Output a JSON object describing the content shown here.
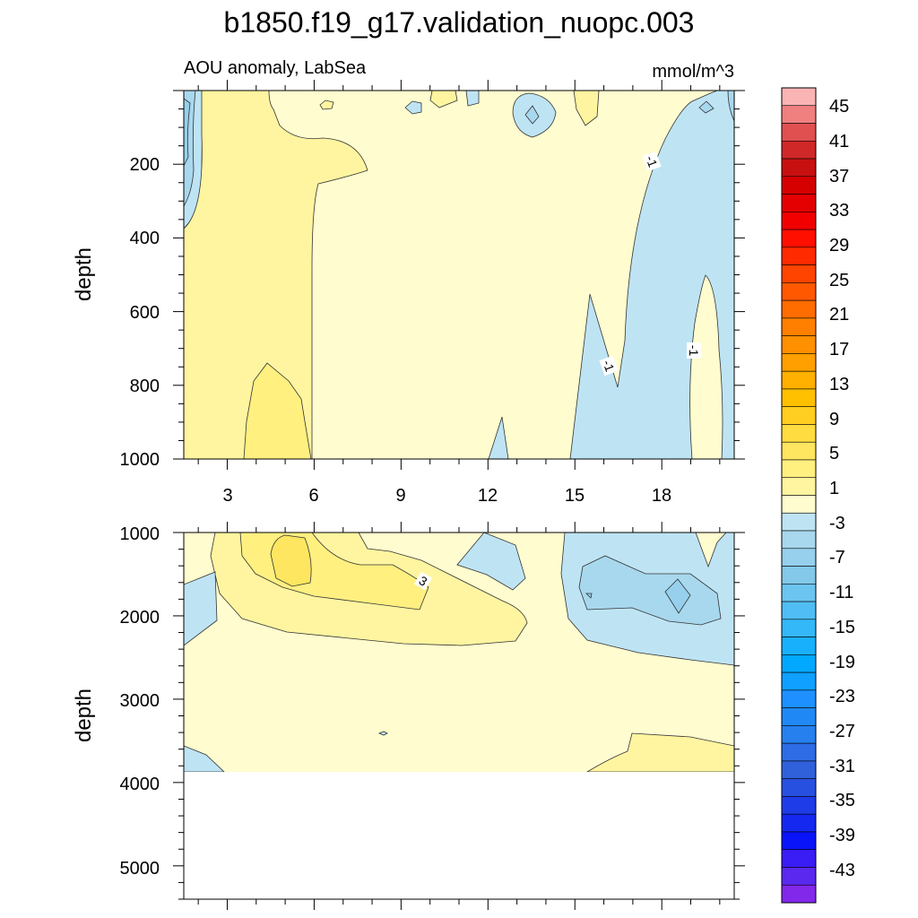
{
  "chart_data": {
    "type": "contour",
    "title": "b1850.f19_g17.validation_nuopc.003",
    "subtitle_left": "AOU anomaly, LabSea",
    "subtitle_right": "mmol/m^3",
    "x_axis": {
      "min": 1.5,
      "max": 20.5,
      "ticks": [
        3,
        6,
        9,
        12,
        15,
        18
      ],
      "tick_labels": [
        "3",
        "6",
        "9",
        "12",
        "15",
        "18"
      ]
    },
    "panels": [
      {
        "name": "upper",
        "ylabel": "depth",
        "ylim": [
          0,
          1000
        ],
        "inverted": true,
        "y_ticks": [
          200,
          400,
          600,
          800,
          1000
        ],
        "y_tick_labels": [
          "200",
          "400",
          "600",
          "800",
          "1000"
        ],
        "contour_labels": [
          {
            "text": "-1",
            "x": 17.8,
            "depth": 190
          },
          {
            "text": "-1",
            "x": 16.3,
            "depth": 810
          },
          {
            "text": "-1",
            "x": 19.1,
            "depth": 710
          }
        ]
      },
      {
        "name": "lower",
        "ylabel": "depth",
        "ylim": [
          1000,
          5400
        ],
        "inverted": true,
        "data_bottom_depth": 3870,
        "y_ticks": [
          1000,
          2000,
          3000,
          4000,
          5000
        ],
        "y_tick_labels": [
          "1000",
          "2000",
          "3000",
          "4000",
          "5000"
        ],
        "contour_labels": [
          {
            "text": "3",
            "x": 10.2,
            "depth": 1650
          }
        ]
      }
    ],
    "colorbar": {
      "levels": [
        -45,
        -43,
        -41,
        -39,
        -37,
        -35,
        -33,
        -31,
        -29,
        -27,
        -25,
        -23,
        -21,
        -19,
        -17,
        -15,
        -13,
        -11,
        -9,
        -7,
        -5,
        -3,
        -1,
        1,
        3,
        5,
        7,
        9,
        11,
        13,
        15,
        17,
        19,
        21,
        23,
        25,
        27,
        29,
        31,
        33,
        35,
        37,
        39,
        41,
        43,
        45
      ],
      "labels": [
        "45",
        "41",
        "37",
        "33",
        "29",
        "25",
        "21",
        "17",
        "13",
        "9",
        "5",
        "1",
        "-3",
        "-7",
        "-11",
        "-15",
        "-19",
        "-23",
        "-27",
        "-31",
        "-35",
        "-39",
        "-43"
      ],
      "colors_top_to_bottom": [
        "#fbb4b4",
        "#f08080",
        "#e05050",
        "#d02828",
        "#c81010",
        "#d60000",
        "#e40000",
        "#f20000",
        "#ff0f00",
        "#ff2a00",
        "#ff4400",
        "#ff5800",
        "#ff6c00",
        "#ff8000",
        "#ff9000",
        "#ffa000",
        "#ffb000",
        "#ffc000",
        "#ffce20",
        "#ffdc40",
        "#ffe660",
        "#fff080",
        "#fff5a0",
        "#fffccf",
        "#bee4f4",
        "#a8d8ee",
        "#96d0ec",
        "#84c8ea",
        "#6cc4f0",
        "#50bef4",
        "#34b8f8",
        "#18b0fc",
        "#00a8ff",
        "#10a0ff",
        "#1e90ff",
        "#2088f4",
        "#2680ee",
        "#2d6ce4",
        "#3060da",
        "#2850e0",
        "#1e3ce8",
        "#1428f0",
        "#0a14f8",
        "#3a1cf4",
        "#5a28ee",
        "#8228ea"
      ]
    }
  }
}
